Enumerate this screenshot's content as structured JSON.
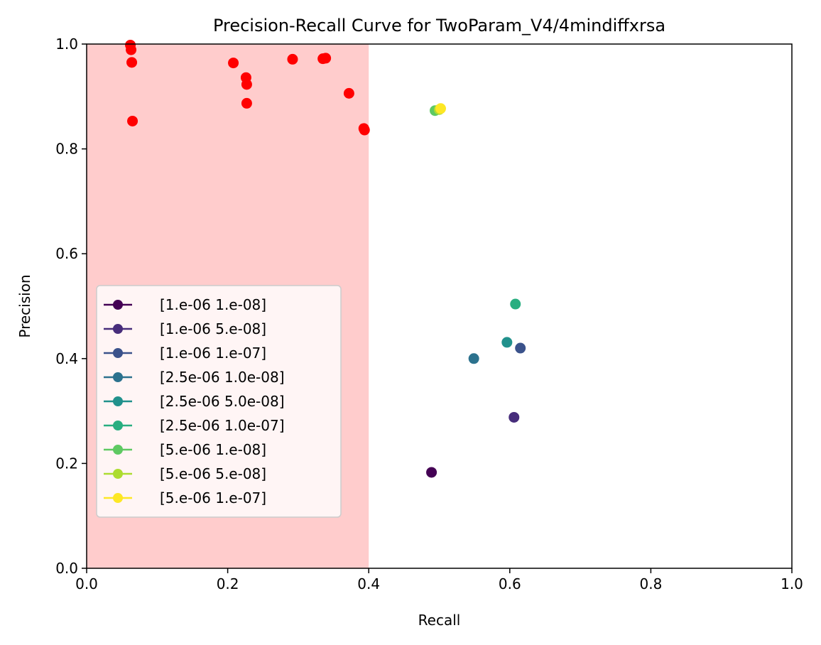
{
  "chart_data": {
    "type": "scatter",
    "title": "Precision-Recall Curve for TwoParam_V4/4mindiffxrsa",
    "xlabel": "Recall",
    "ylabel": "Precision",
    "xlim": [
      0.0,
      1.0
    ],
    "ylim": [
      0.0,
      1.0
    ],
    "xticks": [
      "0.0",
      "0.2",
      "0.4",
      "0.6",
      "0.8",
      "1.0"
    ],
    "yticks": [
      "0.0",
      "0.2",
      "0.4",
      "0.6",
      "0.8",
      "1.0"
    ],
    "grid": false,
    "legend_placement": "lower-left",
    "shaded_region": {
      "x_from": 0.0,
      "x_to": 0.4,
      "color": "#ffcccc"
    },
    "series": [
      {
        "name": "[1.e-06 1.e-08]",
        "color": "#440154",
        "points": [
          [
            0.489,
            0.183
          ]
        ]
      },
      {
        "name": "[1.e-06 5.e-08]",
        "color": "#472d7b",
        "points": [
          [
            0.606,
            0.288
          ]
        ]
      },
      {
        "name": "[1.e-06 1.e-07]",
        "color": "#3b528b",
        "points": [
          [
            0.615,
            0.42
          ]
        ]
      },
      {
        "name": "[2.5e-06 1.0e-08]",
        "color": "#2c728e",
        "points": [
          [
            0.549,
            0.4
          ]
        ]
      },
      {
        "name": "[2.5e-06 5.0e-08]",
        "color": "#21918c",
        "points": [
          [
            0.596,
            0.431
          ]
        ]
      },
      {
        "name": "[2.5e-06 1.0e-07]",
        "color": "#28ae80",
        "points": [
          [
            0.608,
            0.504
          ]
        ]
      },
      {
        "name": "[5.e-06 1.e-08]",
        "color": "#5ec962",
        "points": [
          [
            0.494,
            0.873
          ]
        ]
      },
      {
        "name": "[5.e-06 5.e-08]",
        "color": "#addc30",
        "points": [
          [
            0.5,
            0.875
          ]
        ]
      },
      {
        "name": "[5.e-06 1.e-07]",
        "color": "#fde725",
        "points": [
          [
            0.502,
            0.877
          ]
        ]
      }
    ],
    "highlight_points": {
      "color": "#ff0000",
      "points": [
        [
          0.062,
          0.998
        ],
        [
          0.063,
          0.989
        ],
        [
          0.064,
          0.965
        ],
        [
          0.065,
          0.853
        ],
        [
          0.208,
          0.964
        ],
        [
          0.226,
          0.936
        ],
        [
          0.227,
          0.923
        ],
        [
          0.227,
          0.887
        ],
        [
          0.292,
          0.971
        ],
        [
          0.335,
          0.972
        ],
        [
          0.339,
          0.973
        ],
        [
          0.372,
          0.906
        ],
        [
          0.393,
          0.839
        ],
        [
          0.394,
          0.836
        ]
      ]
    }
  }
}
